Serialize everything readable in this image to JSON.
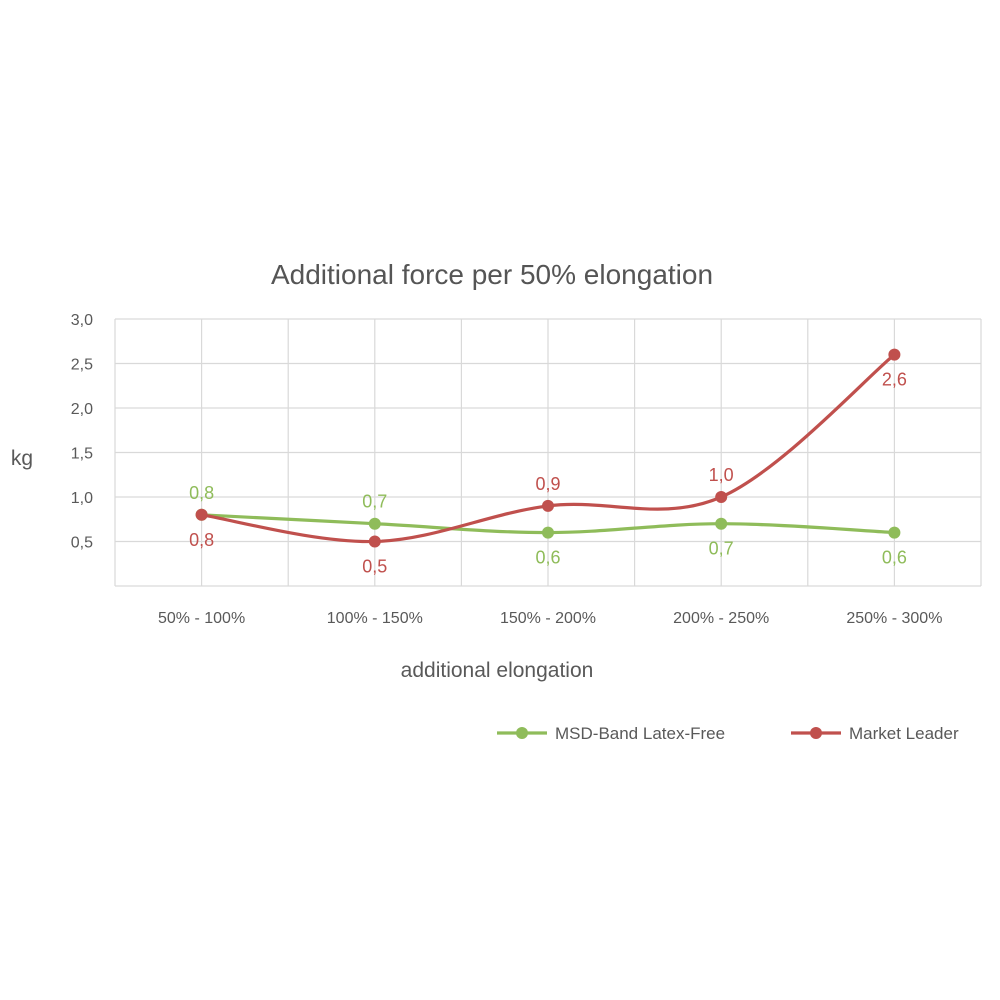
{
  "chart_data": {
    "type": "line",
    "title": "Additional force per 50% elongation",
    "xlabel": "additional elongation",
    "ylabel": "kg",
    "categories": [
      "50% - 100%",
      "100% - 150%",
      "150% - 200%",
      "200% - 250%",
      "250% - 300%"
    ],
    "ylim": [
      0,
      3.0
    ],
    "yticks": [
      "0,5",
      "1,0",
      "1,5",
      "2,0",
      "2,5",
      "3,0"
    ],
    "ytick_values": [
      0.5,
      1.0,
      1.5,
      2.0,
      2.5,
      3.0
    ],
    "grid": true,
    "legend_position": "bottom-right",
    "series": [
      {
        "name": "MSD-Band Latex-Free",
        "color": "#8fbc5a",
        "values": [
          0.8,
          0.7,
          0.6,
          0.7,
          0.6
        ],
        "labels": [
          "0,8",
          "0,7",
          "0,6",
          "0,7",
          "0,6"
        ],
        "label_side": [
          "above",
          "above",
          "below",
          "below",
          "below"
        ]
      },
      {
        "name": "Market Leader",
        "color": "#c0504d",
        "values": [
          0.8,
          0.5,
          0.9,
          1.0,
          2.6
        ],
        "labels": [
          "0,8",
          "0,5",
          "0,9",
          "1,0",
          "2,6"
        ],
        "label_side": [
          "below",
          "below",
          "above",
          "above",
          "below"
        ]
      }
    ]
  }
}
